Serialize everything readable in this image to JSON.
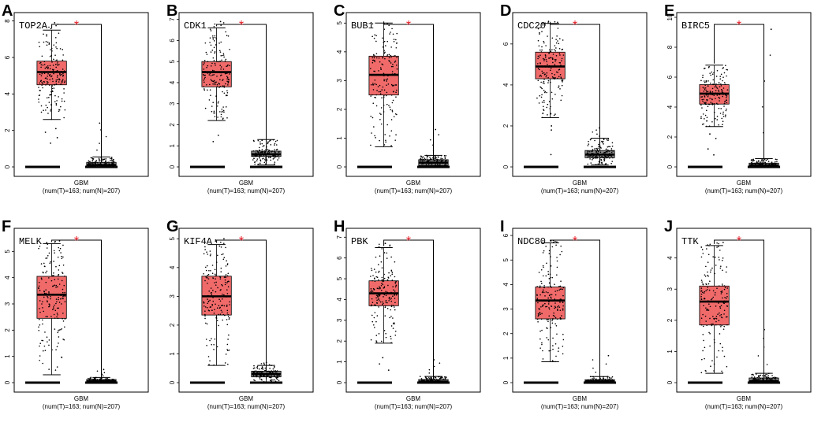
{
  "figure": {
    "x_category": "GBM"
  },
  "chart_data": [
    {
      "letter": "A",
      "type": "box",
      "gene": "TOP2A",
      "category": "GBM",
      "counts": "(num(T)=163; num(N)=207)",
      "significance": "*",
      "ylim": [
        0,
        8.2
      ],
      "yticks": [
        0,
        2,
        4,
        6,
        8
      ],
      "tumor": {
        "median": 5.2,
        "q1": 4.5,
        "q3": 5.8,
        "whisker_low": 2.6,
        "whisker_high": 7.5,
        "point_max": 7.9,
        "outliers_low": [
          1.3,
          1.6,
          1.9,
          2.1
        ]
      },
      "normal": {
        "median": 0.1,
        "q1": 0.02,
        "q3": 0.25,
        "whisker_low": 0,
        "whisker_high": 0.55,
        "point_max": 2.4
      }
    },
    {
      "letter": "B",
      "type": "box",
      "gene": "CDK1",
      "category": "GBM",
      "counts": "(num(T)=163; num(N)=207)",
      "significance": "*",
      "ylim": [
        0,
        7.1
      ],
      "yticks": [
        0,
        1,
        2,
        3,
        4,
        5,
        6,
        7
      ],
      "tumor": {
        "median": 4.5,
        "q1": 3.8,
        "q3": 5.0,
        "whisker_low": 2.2,
        "whisker_high": 6.6,
        "point_max": 6.9,
        "outliers_low": [
          1.2,
          1.5
        ]
      },
      "normal": {
        "median": 0.6,
        "q1": 0.5,
        "q3": 0.75,
        "whisker_low": 0.1,
        "whisker_high": 1.3,
        "point_max": 1.3
      }
    },
    {
      "letter": "C",
      "type": "box",
      "gene": "BUB1",
      "category": "GBM",
      "counts": "(num(T)=163; num(N)=207)",
      "significance": "*",
      "ylim": [
        0,
        5.2
      ],
      "yticks": [
        0,
        1,
        2,
        3,
        4,
        5
      ],
      "tumor": {
        "median": 3.2,
        "q1": 2.5,
        "q3": 3.85,
        "whisker_low": 0.7,
        "whisker_high": 5.0,
        "point_max": 5.0,
        "outliers_low": []
      },
      "normal": {
        "median": 0.15,
        "q1": 0.05,
        "q3": 0.25,
        "whisker_low": 0,
        "whisker_high": 0.4,
        "point_max": 1.3
      }
    },
    {
      "letter": "D",
      "type": "box",
      "gene": "CDC20",
      "category": "GBM",
      "counts": "(num(T)=163; num(N)=207)",
      "significance": "*",
      "ylim": [
        0,
        7.3
      ],
      "yticks": [
        0,
        2,
        4,
        6
      ],
      "tumor": {
        "median": 4.9,
        "q1": 4.3,
        "q3": 5.6,
        "whisker_low": 2.4,
        "whisker_high": 7.0,
        "point_max": 7.1,
        "outliers_low": [
          1.8,
          2.0,
          0.6
        ]
      },
      "normal": {
        "median": 0.6,
        "q1": 0.45,
        "q3": 0.8,
        "whisker_low": 0.1,
        "whisker_high": 1.4,
        "point_max": 1.9
      }
    },
    {
      "letter": "E",
      "type": "box",
      "gene": "BIRC5",
      "category": "GBM",
      "counts": "(num(T)=163; num(N)=207)",
      "significance": "*",
      "ylim": [
        0,
        10
      ],
      "yticks": [
        0,
        2,
        4,
        6,
        8,
        10
      ],
      "tumor": {
        "median": 4.9,
        "q1": 4.2,
        "q3": 5.5,
        "whisker_low": 2.7,
        "whisker_high": 6.8,
        "point_max": 6.8,
        "outliers_low": [
          0.8,
          1.2,
          1.9,
          2.2
        ]
      },
      "normal": {
        "median": 0.1,
        "q1": 0.02,
        "q3": 0.25,
        "whisker_low": 0,
        "whisker_high": 0.55,
        "point_max": 9.2
      }
    },
    {
      "letter": "F",
      "type": "box",
      "gene": "MELK",
      "category": "GBM",
      "counts": "(num(T)=163; num(N)=207)",
      "significance": "*",
      "ylim": [
        0,
        5.7
      ],
      "yticks": [
        0,
        1,
        2,
        3,
        4,
        5
      ],
      "tumor": {
        "median": 3.35,
        "q1": 2.45,
        "q3": 4.05,
        "whisker_low": 0.3,
        "whisker_high": 5.3,
        "point_max": 5.4,
        "outliers_low": []
      },
      "normal": {
        "median": 0.05,
        "q1": 0.01,
        "q3": 0.12,
        "whisker_low": 0,
        "whisker_high": 0.2,
        "point_max": 0.5
      }
    },
    {
      "letter": "G",
      "type": "box",
      "gene": "KIF4A",
      "category": "GBM",
      "counts": "(num(T)=163; num(N)=207)",
      "significance": "*",
      "ylim": [
        0,
        5.2
      ],
      "yticks": [
        0,
        1,
        2,
        3,
        4,
        5
      ],
      "tumor": {
        "median": 3.0,
        "q1": 2.35,
        "q3": 3.7,
        "whisker_low": 0.6,
        "whisker_high": 4.8,
        "point_max": 5.0,
        "outliers_low": []
      },
      "normal": {
        "median": 0.3,
        "q1": 0.2,
        "q3": 0.4,
        "whisker_low": 0,
        "whisker_high": 0.6,
        "point_max": 0.7
      }
    },
    {
      "letter": "H",
      "type": "box",
      "gene": "PBK",
      "category": "GBM",
      "counts": "(num(T)=163; num(N)=207)",
      "significance": "*",
      "ylim": [
        0,
        7.2
      ],
      "yticks": [
        0,
        1,
        2,
        3,
        4,
        5,
        6,
        7
      ],
      "tumor": {
        "median": 4.3,
        "q1": 3.7,
        "q3": 4.9,
        "whisker_low": 1.9,
        "whisker_high": 6.5,
        "point_max": 6.7,
        "outliers_low": [
          0.6,
          0.9,
          1.2
        ]
      },
      "normal": {
        "median": 0.05,
        "q1": 0.01,
        "q3": 0.15,
        "whisker_low": 0,
        "whisker_high": 0.3,
        "point_max": 1.1
      }
    },
    {
      "letter": "I",
      "type": "box",
      "gene": "NDC80",
      "category": "GBM",
      "counts": "(num(T)=163; num(N)=207)",
      "significance": "*",
      "ylim": [
        0,
        6.1
      ],
      "yticks": [
        0,
        1,
        2,
        3,
        4,
        5,
        6
      ],
      "tumor": {
        "median": 3.35,
        "q1": 2.6,
        "q3": 3.9,
        "whisker_low": 0.85,
        "whisker_high": 5.7,
        "point_max": 5.8,
        "outliers_low": []
      },
      "normal": {
        "median": 0.05,
        "q1": 0.01,
        "q3": 0.12,
        "whisker_low": 0,
        "whisker_high": 0.25,
        "point_max": 1.1
      }
    },
    {
      "letter": "J",
      "type": "box",
      "gene": "TTK",
      "category": "GBM",
      "counts": "(num(T)=163; num(N)=207)",
      "significance": "*",
      "ylim": [
        0,
        4.8
      ],
      "yticks": [
        0,
        1,
        2,
        3,
        4
      ],
      "tumor": {
        "median": 2.6,
        "q1": 1.85,
        "q3": 3.1,
        "whisker_low": 0.3,
        "whisker_high": 4.4,
        "point_max": 4.5,
        "outliers_low": []
      },
      "normal": {
        "median": 0.05,
        "q1": 0.01,
        "q3": 0.15,
        "whisker_low": 0,
        "whisker_high": 0.3,
        "point_max": 1.7
      }
    }
  ]
}
